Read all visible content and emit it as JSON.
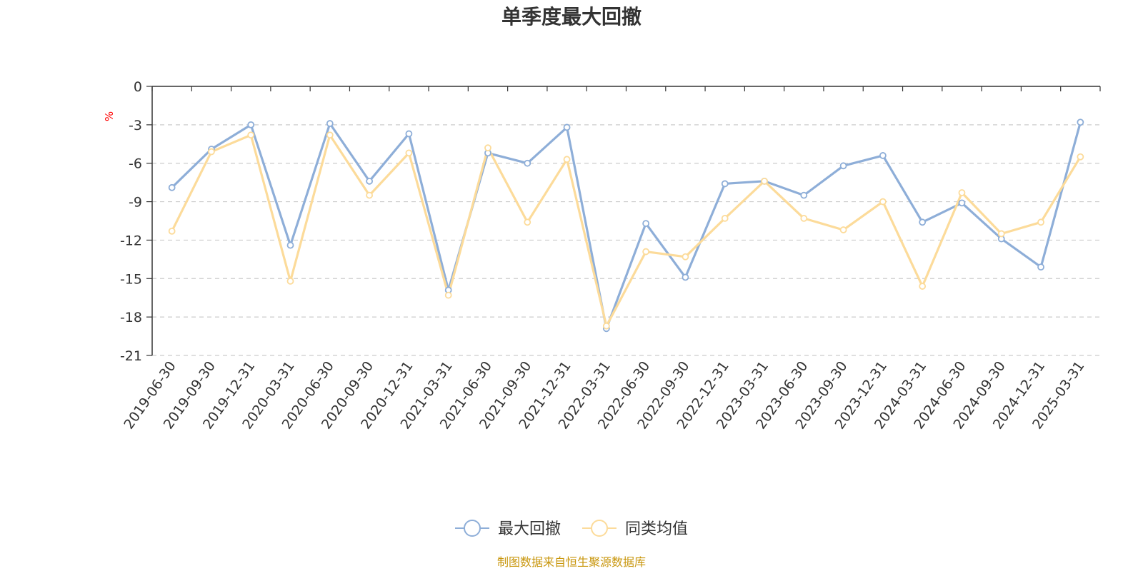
{
  "chart_data": {
    "type": "line",
    "title": "单季度最大回撤",
    "ylabel": "%",
    "ylim": [
      -21,
      0
    ],
    "yticks": [
      0,
      -3,
      -6,
      -9,
      -12,
      -15,
      -18,
      -21
    ],
    "grid": true,
    "legend_position": "bottom-center",
    "categories": [
      "2019-06-30",
      "2019-09-30",
      "2019-12-31",
      "2020-03-31",
      "2020-06-30",
      "2020-09-30",
      "2020-12-31",
      "2021-03-31",
      "2021-06-30",
      "2021-09-30",
      "2021-12-31",
      "2022-03-31",
      "2022-06-30",
      "2022-09-30",
      "2022-12-31",
      "2023-03-31",
      "2023-06-30",
      "2023-09-30",
      "2023-12-31",
      "2024-03-31",
      "2024-06-30",
      "2024-09-30",
      "2024-12-31",
      "2025-03-31"
    ],
    "series": [
      {
        "name": "最大回撤",
        "color": "#8eaed8",
        "values": [
          -7.9,
          -4.9,
          -3.0,
          -12.4,
          -2.9,
          -7.4,
          -3.7,
          -15.9,
          -5.2,
          -6.0,
          -3.2,
          -18.9,
          -10.7,
          -14.9,
          -7.6,
          -7.4,
          -8.5,
          -6.2,
          -5.4,
          -10.6,
          -9.1,
          -11.9,
          -14.1,
          -2.8
        ]
      },
      {
        "name": "同类均值",
        "color": "#fcdb9a",
        "values": [
          -11.3,
          -5.1,
          -3.8,
          -15.2,
          -3.8,
          -8.5,
          -5.2,
          -16.3,
          -4.8,
          -10.6,
          -5.7,
          -18.7,
          -12.9,
          -13.3,
          -10.3,
          -7.4,
          -10.3,
          -11.2,
          -9.0,
          -15.6,
          -8.3,
          -11.5,
          -10.6,
          -5.5
        ]
      }
    ],
    "source": "制图数据来自恒生聚源数据库"
  }
}
